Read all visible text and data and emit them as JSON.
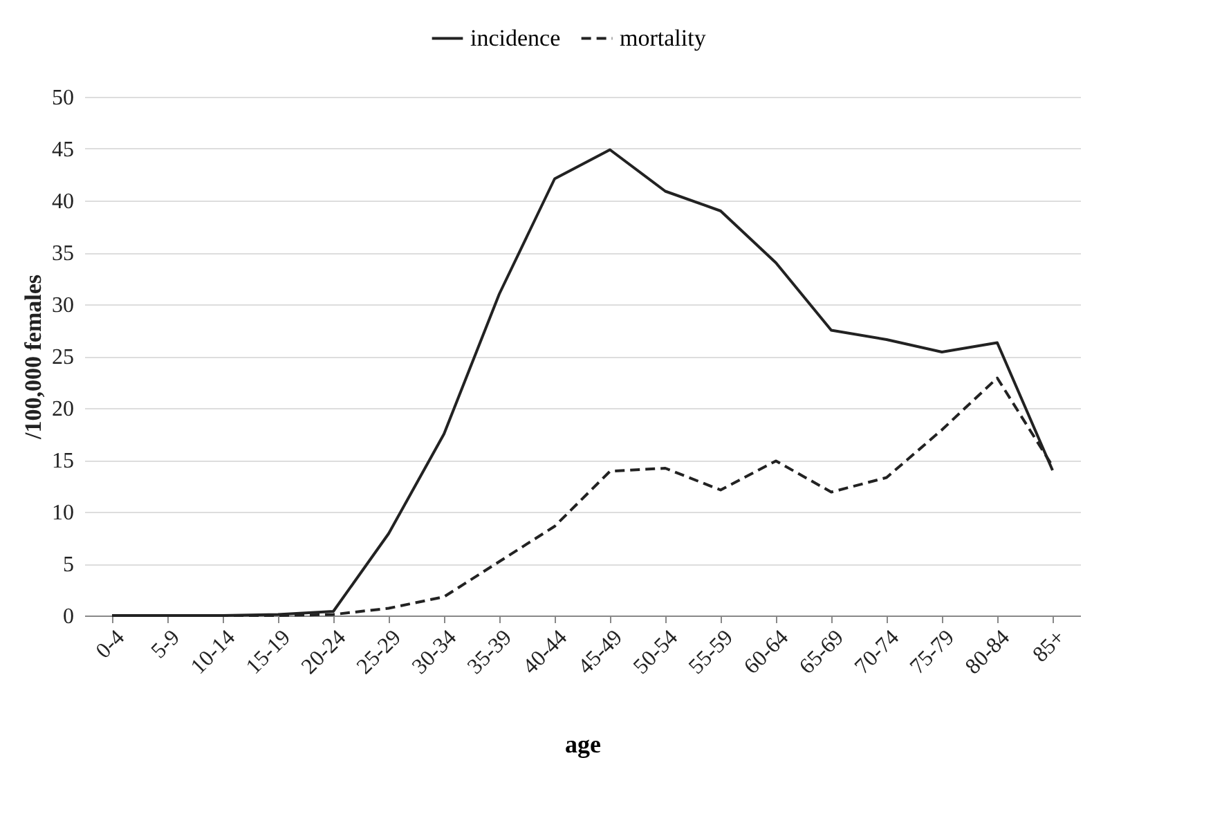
{
  "chart_data": {
    "type": "line",
    "xlabel": "age",
    "ylabel": "/100,000 females",
    "categories": [
      "0-4",
      "5-9",
      "10-14",
      "15-19",
      "20-24",
      "25-29",
      "30-34",
      "35-39",
      "40-44",
      "45-49",
      "50-54",
      "55-59",
      "60-64",
      "65-69",
      "70-74",
      "75-79",
      "80-84",
      "85+"
    ],
    "series": [
      {
        "name": "incidence",
        "color": "#222222",
        "line_style": "solid",
        "values": [
          0,
          0,
          0,
          0.1,
          0.4,
          7.9,
          17.5,
          31,
          42.1,
          44.9,
          40.9,
          39,
          34,
          27.5,
          26.6,
          25.4,
          26.3,
          14
        ]
      },
      {
        "name": "mortality",
        "color": "#222222",
        "line_style": "dashed",
        "values": [
          0,
          0,
          0,
          0,
          0.1,
          0.7,
          1.8,
          5.2,
          8.6,
          13.9,
          14.2,
          12.1,
          14.9,
          11.9,
          13.3,
          17.9,
          22.9,
          14.4
        ]
      }
    ],
    "ylim": [
      0,
      50
    ],
    "yticks": [
      0,
      5,
      10,
      15,
      20,
      25,
      30,
      35,
      40,
      45,
      50
    ],
    "grid": "y",
    "legend": "top",
    "marker": "none"
  }
}
